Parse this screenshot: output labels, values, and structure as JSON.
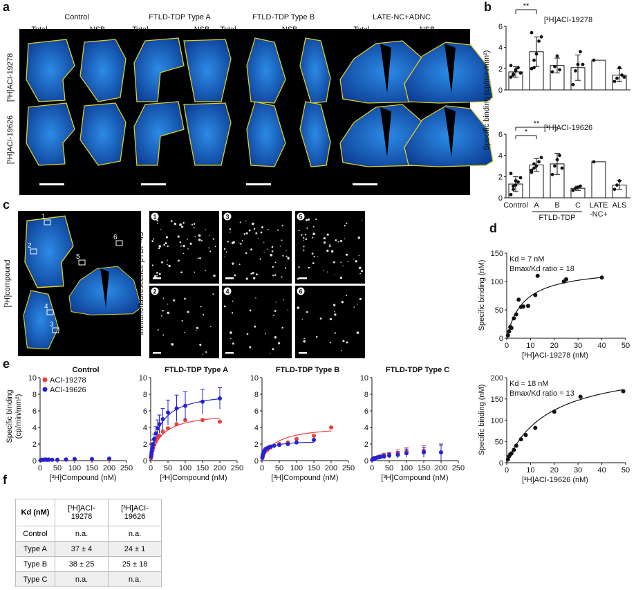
{
  "panel_letters": [
    "a",
    "b",
    "c",
    "d",
    "e",
    "f"
  ],
  "panel_a": {
    "groups": [
      "Control",
      "FTLD-TDP Type A",
      "FTLD-TDP Type B",
      "LATE-NC+ADNC"
    ],
    "subcols": [
      "Total",
      "NSB"
    ],
    "rows": [
      "[³H]ACI-19278",
      "[³H]ACI-19626"
    ]
  },
  "panel_b": {
    "ylabel": "Specific binding (cp/min/mm²)",
    "categories": [
      "Control",
      "A",
      "B",
      "C",
      "LATE",
      "ALS"
    ],
    "late_line2": "-NC+",
    "group_label": "FTLD-TDP",
    "sig": [
      "**",
      "*",
      "**"
    ]
  },
  "panel_c": {
    "ylabel": "[³H]compound",
    "if_label": "Immunofluorescence pTDP-43",
    "regions": [
      "1",
      "2",
      "3",
      "4",
      "5",
      "6"
    ],
    "tiles": [
      "1",
      "3",
      "5",
      "2",
      "4",
      "6"
    ]
  },
  "panel_d": {
    "ylabel": "Specific binding (nM)",
    "plots": [
      {
        "xlabel": "[³H]ACI-19278 (nM)",
        "kd": "Kd = 7 nM",
        "ratio": "Bmax/Kd ratio = 18"
      },
      {
        "xlabel": "[³H]ACI-19626 (nM)",
        "kd": "Kd = 18 nM",
        "ratio": "Bmax/Kd ratio = 13"
      }
    ]
  },
  "panel_e": {
    "ylabel": "Specific binding",
    "ylabel2": "(cp/min/mm²)",
    "xlabel": "[³H]Compound (nM)",
    "titles": [
      "Control",
      "FTLD-TDP Type A",
      "FTLD-TDP Type B",
      "FTLD-TDP Type C"
    ],
    "legend": [
      "ACI-19278",
      "ACI-19626"
    ]
  },
  "table": {
    "header": [
      "Kd (nM)",
      "[³H]ACI-19278",
      "[³H]ACI-19626"
    ],
    "rows": [
      [
        "Control",
        "n.a.",
        "n.a."
      ],
      [
        "Type A",
        "37 ± 4",
        "24 ± 1"
      ],
      [
        "Type B",
        "38 ± 25",
        "25 ± 18"
      ],
      [
        "Type C",
        "n.a.",
        "n.a."
      ]
    ]
  },
  "colors": {
    "red": "#e8413c",
    "blue": "#2323d6",
    "tissue": "#1c78d6",
    "outline": "#e0d020"
  },
  "chart_data": [
    {
      "type": "bar",
      "title": "[³H]ACI-19278",
      "categories": [
        "Control",
        "A",
        "B",
        "C",
        "LATE",
        "ALS"
      ],
      "values": [
        1.7,
        3.6,
        2.3,
        2.1,
        2.8,
        1.4
      ],
      "errors": [
        0.5,
        1.4,
        0.7,
        1.2,
        0,
        0.6
      ],
      "points": [
        [
          1.2,
          1.5,
          1.8,
          2.1,
          1.6,
          2.3,
          1.4,
          1.9
        ],
        [
          2.0,
          2.8,
          3.4,
          4.6,
          5.0,
          5.4,
          2.1
        ],
        [
          1.7,
          2.2,
          3.2,
          1.9
        ],
        [
          0.5,
          1.8,
          2.4,
          3.6,
          2.4
        ],
        [
          2.8
        ],
        [
          0.8,
          1.1,
          2.1,
          1.4,
          1.2
        ]
      ],
      "ylim": [
        0,
        6
      ],
      "yticks": [
        0,
        2,
        4,
        6
      ]
    },
    {
      "type": "bar",
      "title": "[³H]ACI-19626",
      "categories": [
        "Control",
        "A",
        "B",
        "C",
        "LATE",
        "ALS"
      ],
      "values": [
        1.3,
        3.1,
        3.2,
        0.9,
        3.4,
        1.2
      ],
      "errors": [
        0.7,
        0.6,
        1.0,
        0.2,
        0,
        0.4
      ],
      "points": [
        [
          0.3,
          0.8,
          1.2,
          1.5,
          1.9,
          2.3,
          1.1,
          1.6
        ],
        [
          2.4,
          2.8,
          3.0,
          3.4,
          3.8,
          2.6,
          3.2
        ],
        [
          2.2,
          3.0,
          3.6,
          4.0,
          2.8
        ],
        [
          0.7,
          0.9,
          1.0,
          1.1
        ],
        [
          3.4
        ],
        [
          0.8,
          1.2,
          1.6
        ]
      ],
      "ylim": [
        0,
        6
      ],
      "yticks": [
        0,
        2,
        4,
        6
      ]
    },
    {
      "type": "scatter",
      "xlim": [
        0,
        50
      ],
      "ylim": [
        0,
        150
      ],
      "xticks": [
        0,
        10,
        20,
        30,
        40,
        50
      ],
      "yticks": [
        0,
        50,
        100,
        150
      ],
      "x": [
        0.5,
        1,
        1.5,
        2,
        3,
        4,
        5,
        6,
        7,
        9,
        12,
        13,
        24,
        25,
        40
      ],
      "y": [
        5,
        12,
        20,
        18,
        35,
        42,
        68,
        55,
        56,
        57,
        76,
        110,
        100,
        104,
        107
      ],
      "fit": {
        "bmax": 126,
        "kd": 7
      }
    },
    {
      "type": "scatter",
      "xlim": [
        0,
        50
      ],
      "ylim": [
        0,
        200
      ],
      "xticks": [
        0,
        10,
        20,
        30,
        40,
        50
      ],
      "yticks": [
        0,
        50,
        100,
        150,
        200
      ],
      "x": [
        0.5,
        1,
        1.5,
        2,
        3,
        4,
        6,
        8,
        12,
        20,
        31,
        49
      ],
      "y": [
        8,
        15,
        20,
        22,
        30,
        40,
        55,
        65,
        82,
        120,
        155,
        168
      ],
      "fit": {
        "bmax": 235,
        "kd": 18
      }
    },
    {
      "type": "scatter",
      "title": "Control",
      "xlim": [
        0,
        250
      ],
      "ylim": [
        0,
        10
      ],
      "xticks": [
        0,
        50,
        100,
        150,
        200,
        250
      ],
      "yticks": [
        0,
        2,
        4,
        6,
        8,
        10
      ],
      "series": [
        {
          "name": "ACI-19278",
          "x": [
            2,
            5,
            10,
            15,
            20,
            25,
            35,
            50,
            75,
            100,
            150,
            200
          ],
          "y": [
            0.1,
            0.1,
            0.1,
            0.1,
            0.1,
            0.15,
            0.1,
            0.1,
            0.1,
            0.15,
            0.1,
            0.15
          ]
        },
        {
          "name": "ACI-19626",
          "x": [
            2,
            5,
            10,
            15,
            20,
            25,
            35,
            50,
            75,
            100,
            150,
            200
          ],
          "y": [
            0.05,
            0.1,
            0.1,
            0.15,
            0.1,
            0.1,
            0.1,
            0.1,
            0.15,
            0.2,
            0.2,
            0.25
          ]
        }
      ]
    },
    {
      "type": "scatter",
      "title": "FTLD-TDP Type A",
      "xlim": [
        0,
        250
      ],
      "ylim": [
        0,
        10
      ],
      "xticks": [
        0,
        50,
        100,
        150,
        200,
        250
      ],
      "yticks": [
        0,
        2,
        4,
        6,
        8,
        10
      ],
      "series": [
        {
          "name": "ACI-19278",
          "x": [
            1,
            2,
            3,
            5,
            7,
            10,
            15,
            20,
            25,
            35,
            50,
            75,
            100,
            150,
            200
          ],
          "y": [
            0.3,
            0.5,
            0.8,
            1.2,
            1.5,
            1.9,
            2.4,
            2.8,
            3.0,
            3.5,
            3.9,
            4.4,
            4.9,
            4.9,
            4.7
          ],
          "fit": {
            "bmax": 5.9,
            "kd": 30
          }
        },
        {
          "name": "ACI-19626",
          "x": [
            1,
            2,
            3,
            5,
            7,
            10,
            15,
            20,
            25,
            35,
            50,
            75,
            100,
            150,
            200
          ],
          "y": [
            0.5,
            0.8,
            1.2,
            1.6,
            2.0,
            2.6,
            3.3,
            3.9,
            4.4,
            5.0,
            5.8,
            6.3,
            6.6,
            7.1,
            7.5
          ],
          "errors": [
            0.1,
            0.2,
            0.3,
            0.4,
            0.5,
            0.6,
            0.8,
            1.0,
            1.1,
            1.3,
            1.5,
            1.6,
            1.7,
            1.5,
            1.3
          ],
          "fit": {
            "bmax": 8.5,
            "kd": 28
          }
        }
      ]
    },
    {
      "type": "scatter",
      "title": "FTLD-TDP Type B",
      "xlim": [
        0,
        250
      ],
      "ylim": [
        0,
        10
      ],
      "xticks": [
        0,
        50,
        100,
        150,
        200,
        250
      ],
      "yticks": [
        0,
        2,
        4,
        6,
        8,
        10
      ],
      "series": [
        {
          "name": "ACI-19278",
          "x": [
            1,
            2,
            3,
            5,
            7,
            10,
            15,
            20,
            25,
            35,
            50,
            75,
            100,
            150,
            200
          ],
          "y": [
            0.3,
            0.5,
            0.7,
            0.9,
            1.0,
            1.2,
            1.3,
            1.5,
            1.6,
            1.8,
            2.0,
            2.2,
            2.6,
            3.0,
            4.0
          ],
          "fit": {
            "bmax": 4.3,
            "kd": 40
          }
        },
        {
          "name": "ACI-19626",
          "x": [
            1,
            2,
            3,
            5,
            7,
            10,
            15,
            20,
            25,
            35,
            50,
            75,
            100,
            150
          ],
          "y": [
            0.4,
            0.6,
            0.8,
            1.0,
            1.2,
            1.4,
            1.5,
            1.6,
            1.7,
            1.8,
            1.9,
            2.0,
            2.2,
            2.5
          ],
          "fit": {
            "bmax": 2.4,
            "kd": 12
          }
        }
      ]
    },
    {
      "type": "scatter",
      "title": "FTLD-TDP Type C",
      "xlim": [
        0,
        250
      ],
      "ylim": [
        0,
        10
      ],
      "xticks": [
        0,
        50,
        100,
        150,
        200,
        250
      ],
      "yticks": [
        0,
        2,
        4,
        6,
        8,
        10
      ],
      "series": [
        {
          "name": "ACI-19278",
          "x": [
            1,
            2,
            3,
            5,
            7,
            10,
            15,
            20,
            25,
            35,
            50,
            75,
            100,
            150,
            200
          ],
          "y": [
            0.1,
            0.2,
            0.2,
            0.3,
            0.3,
            0.3,
            0.4,
            0.4,
            0.5,
            0.6,
            0.7,
            0.9,
            1.1,
            1.2,
            1.0
          ],
          "errors": [
            0.05,
            0.05,
            0.1,
            0.1,
            0.1,
            0.1,
            0.15,
            0.2,
            0.2,
            0.3,
            0.3,
            0.4,
            0.5,
            0.6,
            0.8
          ]
        },
        {
          "name": "ACI-19626",
          "x": [
            1,
            2,
            3,
            5,
            7,
            10,
            15,
            20,
            25,
            35,
            50,
            75,
            100,
            150,
            200
          ],
          "y": [
            0.1,
            0.15,
            0.2,
            0.25,
            0.3,
            0.3,
            0.35,
            0.4,
            0.45,
            0.5,
            0.6,
            0.7,
            0.9,
            1.0,
            1.0
          ],
          "errors": [
            0.05,
            0.05,
            0.1,
            0.1,
            0.1,
            0.1,
            0.15,
            0.2,
            0.2,
            0.3,
            0.3,
            0.4,
            0.5,
            0.6,
            1.0
          ]
        }
      ]
    }
  ]
}
